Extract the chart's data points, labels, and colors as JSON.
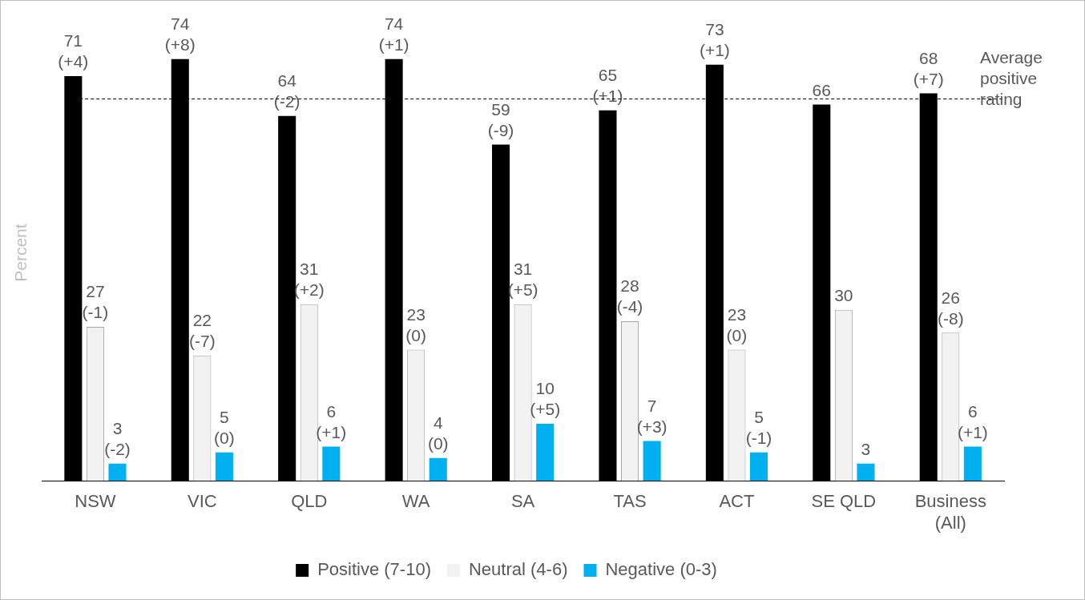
{
  "chart_data": {
    "type": "bar",
    "ylabel": "Percent",
    "categories": [
      "NSW",
      "VIC",
      "QLD",
      "WA",
      "SA",
      "TAS",
      "ACT",
      "SE QLD",
      "Business (All)"
    ],
    "series": [
      {
        "name": "Positive (7-10)",
        "color": "#000000",
        "values": [
          71,
          74,
          64,
          74,
          59,
          65,
          73,
          66,
          68
        ],
        "value_labels": [
          "71\n(+4)",
          "74\n(+8)",
          "64\n(-2)",
          "74\n(+1)",
          "59\n(-9)",
          "65\n(+1)",
          "73\n(+1)",
          "66",
          "68\n(+7)"
        ]
      },
      {
        "name": "Neutral (4-6)",
        "color": "#f2f2f2",
        "values": [
          27,
          22,
          31,
          23,
          31,
          28,
          23,
          30,
          26
        ],
        "value_labels": [
          "27\n(-1)",
          "22\n(-7)",
          "31\n(+2)",
          "23\n(0)",
          "31\n(+5)",
          "28\n(-4)",
          "23\n(0)",
          "30",
          "26\n(-8)"
        ]
      },
      {
        "name": "Negative (0-3)",
        "color": "#00b0f0",
        "values": [
          3,
          5,
          6,
          4,
          10,
          7,
          5,
          3,
          6
        ],
        "value_labels": [
          "3\n(-2)",
          "5\n(0)",
          "6\n(+1)",
          "4\n(0)",
          "10\n(+5)",
          "7\n(+3)",
          "5\n(-1)",
          "3",
          "6\n(+1)"
        ]
      }
    ],
    "ref_lines": [
      {
        "axis": "y",
        "value": 67,
        "label": "Average positive rating",
        "line_style": "dashed",
        "color": "#000000"
      }
    ],
    "grid": false,
    "legend": "bottom"
  }
}
